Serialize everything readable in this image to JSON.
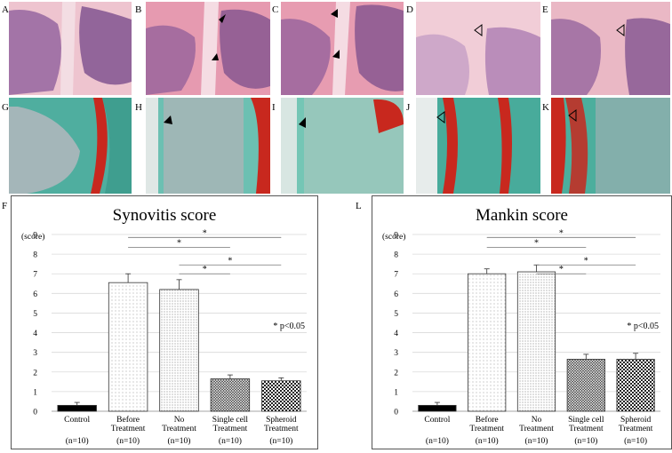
{
  "panel_labels": {
    "top": [
      "A",
      "B",
      "C",
      "D",
      "E"
    ],
    "middle": [
      "G",
      "H",
      "I",
      "J",
      "K"
    ],
    "charts": [
      "F",
      "L"
    ]
  },
  "colors": {
    "he_pink": "#e9aabb",
    "he_purple": "#7b4d8c",
    "safranin_red": "#c8281e",
    "fast_green": "#5fb8ac"
  },
  "chart_data": [
    {
      "type": "bar",
      "title": "Synovitis score",
      "ylabel": "(score)",
      "ylim": [
        0,
        9
      ],
      "yticks": [
        "0",
        "1",
        "2",
        "3",
        "4",
        "5",
        "6",
        "7",
        "8",
        "9"
      ],
      "categories": [
        [
          "Control"
        ],
        [
          "Before",
          "Treatment"
        ],
        [
          "No",
          "Treatment"
        ],
        [
          "Single cell",
          "Treatment"
        ],
        [
          "Spheroid",
          "Treatment"
        ]
      ],
      "n_labels": [
        "(n=10)",
        "(n=10)",
        "(n=10)",
        "(n=10)",
        "(n=10)"
      ],
      "values": [
        0.3,
        6.55,
        6.2,
        1.65,
        1.55
      ],
      "errors": [
        0.15,
        0.45,
        0.5,
        0.2,
        0.15
      ],
      "patterns": [
        "solid",
        "dots-sparse",
        "dots-dense",
        "crosshatch",
        "checker"
      ],
      "significance": [
        {
          "from": 1,
          "to": 4,
          "level": 8.85,
          "label": "*"
        },
        {
          "from": 1,
          "to": 3,
          "level": 8.35,
          "label": "*"
        },
        {
          "from": 2,
          "to": 4,
          "level": 7.45,
          "label": "*"
        },
        {
          "from": 2,
          "to": 3,
          "level": 7.0,
          "label": "*"
        }
      ],
      "annotation": "* p<0.05"
    },
    {
      "type": "bar",
      "title": "Mankin score",
      "ylabel": "(score)",
      "ylim": [
        0,
        9
      ],
      "yticks": [
        "0",
        "1",
        "2",
        "3",
        "4",
        "5",
        "6",
        "7",
        "8",
        "9"
      ],
      "categories": [
        [
          "Control"
        ],
        [
          "Before",
          "Treatment"
        ],
        [
          "No",
          "Treatment"
        ],
        [
          "Single cell",
          "Treatment"
        ],
        [
          "Spheroid",
          "Treatment"
        ]
      ],
      "n_labels": [
        "(n=10)",
        "(n=10)",
        "(n=10)",
        "(n=10)",
        "(n=10)"
      ],
      "values": [
        0.3,
        7.0,
        7.1,
        2.65,
        2.65
      ],
      "errors": [
        0.15,
        0.25,
        0.35,
        0.25,
        0.3
      ],
      "patterns": [
        "solid",
        "dots-sparse",
        "dots-dense",
        "crosshatch",
        "checker"
      ],
      "significance": [
        {
          "from": 1,
          "to": 4,
          "level": 8.85,
          "label": "*"
        },
        {
          "from": 1,
          "to": 3,
          "level": 8.35,
          "label": "*"
        },
        {
          "from": 2,
          "to": 4,
          "level": 7.45,
          "label": "*"
        },
        {
          "from": 2,
          "to": 3,
          "level": 7.0,
          "label": "*"
        }
      ],
      "annotation": "* p<0.05"
    }
  ]
}
